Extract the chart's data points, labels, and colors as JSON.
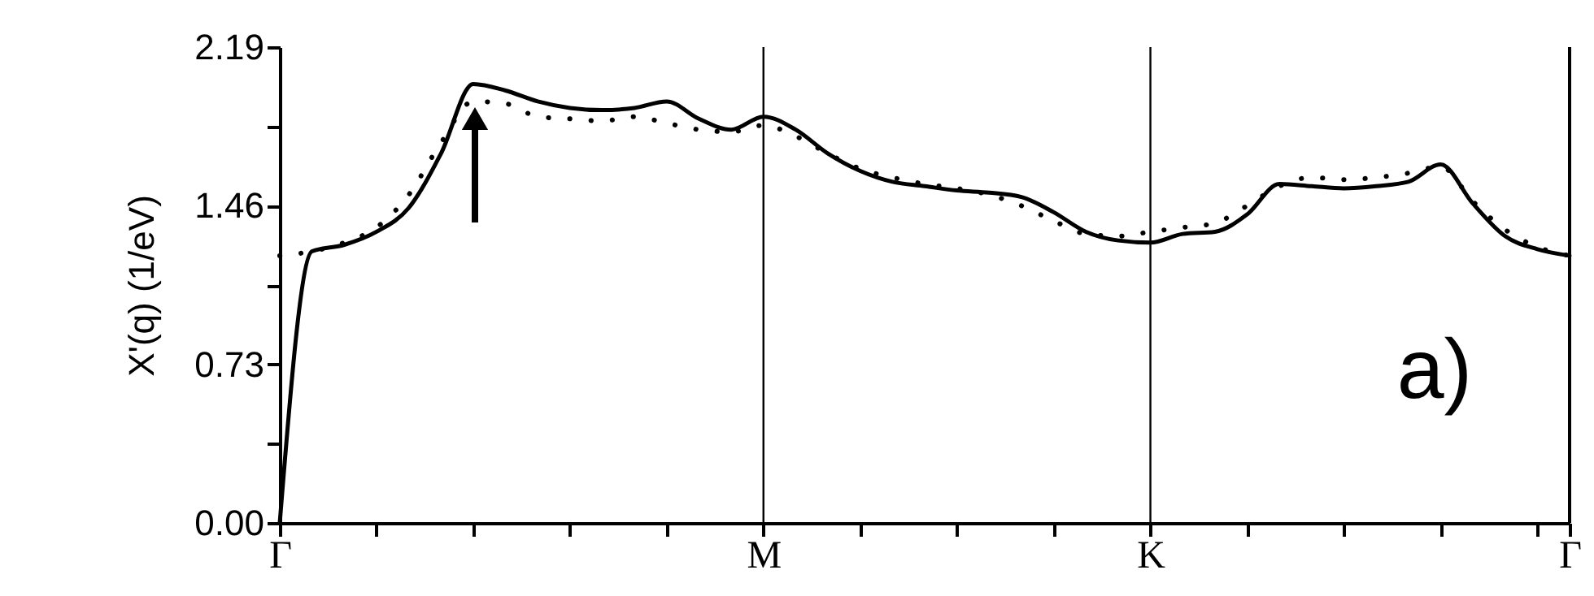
{
  "chart_data": {
    "type": "line",
    "ylabel": "X'(q) (1/eV)",
    "categories": [
      "Γ",
      null,
      null,
      null,
      null,
      null,
      null,
      null,
      null,
      null,
      null,
      null,
      null,
      null,
      null,
      "M",
      null,
      null,
      null,
      null,
      null,
      null,
      null,
      null,
      null,
      null,
      null,
      "K",
      null,
      null,
      null,
      null,
      null,
      null,
      null,
      null,
      null,
      null,
      null,
      null,
      "Γ"
    ],
    "ylim": [
      0,
      2.19
    ],
    "yticks": [
      {
        "value": 0,
        "label": "0.00"
      },
      {
        "value": 0.365,
        "label": null
      },
      {
        "value": 0.73,
        "label": "0.73"
      },
      {
        "value": 1.095,
        "label": null
      },
      {
        "value": 1.46,
        "label": "1.46"
      },
      {
        "value": 1.825,
        "label": null
      },
      {
        "value": 2.19,
        "label": "2.19"
      }
    ],
    "grid": false,
    "series": [
      {
        "color": "#000000",
        "line_style": "solid",
        "values": [
          0,
          1.25,
          1.28,
          1.34,
          1.45,
          1.7,
          2.02,
          1.99,
          1.94,
          1.91,
          1.9,
          1.91,
          1.94,
          1.86,
          1.81,
          1.87,
          1.81,
          1.7,
          1.62,
          1.57,
          1.55,
          1.53,
          1.52,
          1.5,
          1.43,
          1.34,
          1.3,
          1.29,
          1.33,
          1.34,
          1.42,
          1.56,
          1.55,
          1.54,
          1.55,
          1.57,
          1.65,
          1.47,
          1.32,
          1.26,
          1.23
        ]
      },
      {
        "color": "#000000",
        "line_style": "dotted",
        "values": [
          1.23,
          1.25,
          1.29,
          1.36,
          1.51,
          1.75,
          1.94,
          1.93,
          1.87,
          1.86,
          1.85,
          1.87,
          1.84,
          1.81,
          1.8,
          1.83,
          1.78,
          1.7,
          1.63,
          1.59,
          1.56,
          1.54,
          1.51,
          1.46,
          1.39,
          1.33,
          1.32,
          1.34,
          1.36,
          1.38,
          1.46,
          1.55,
          1.59,
          1.58,
          1.59,
          1.61,
          1.64,
          1.48,
          1.35,
          1.27,
          1.23
        ]
      }
    ],
    "ref_lines": [
      {
        "axis": "x",
        "value": "M",
        "color": "#000000"
      },
      {
        "axis": "x",
        "value": "K",
        "color": "#000000"
      }
    ],
    "annotations": [
      "a)"
    ]
  }
}
